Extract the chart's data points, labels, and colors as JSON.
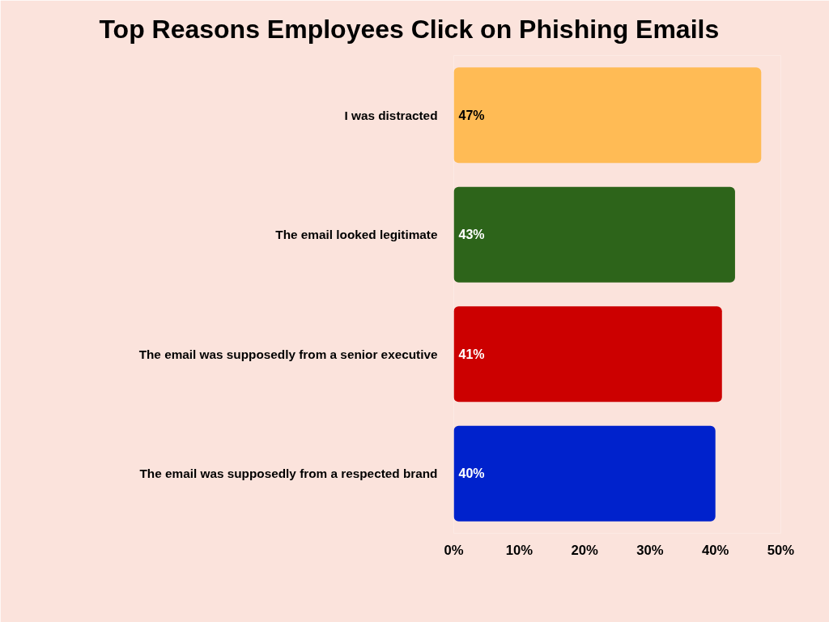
{
  "chart_data": {
    "type": "bar",
    "orientation": "horizontal",
    "title": "Top Reasons Employees Click on Phishing Emails",
    "categories": [
      "I was distracted",
      "The email looked legitimate",
      "The email was supposedly from a senior executive",
      "The email was supposedly from a respected brand"
    ],
    "values": [
      47,
      43,
      41,
      40
    ],
    "colors": [
      "#ffbb55",
      "#2d641a",
      "#cc0000",
      "#0022cc"
    ],
    "value_labels": [
      "47%",
      "43%",
      "41%",
      "40%"
    ],
    "xlim": [
      0,
      50
    ],
    "xticks": [
      {
        "value": 0,
        "label": "0%"
      },
      {
        "value": 10,
        "label": "10%"
      },
      {
        "value": 20,
        "label": "20%"
      },
      {
        "value": 30,
        "label": "30%"
      },
      {
        "value": 40,
        "label": "40%"
      },
      {
        "value": 50,
        "label": "50%"
      }
    ],
    "grid": false
  }
}
